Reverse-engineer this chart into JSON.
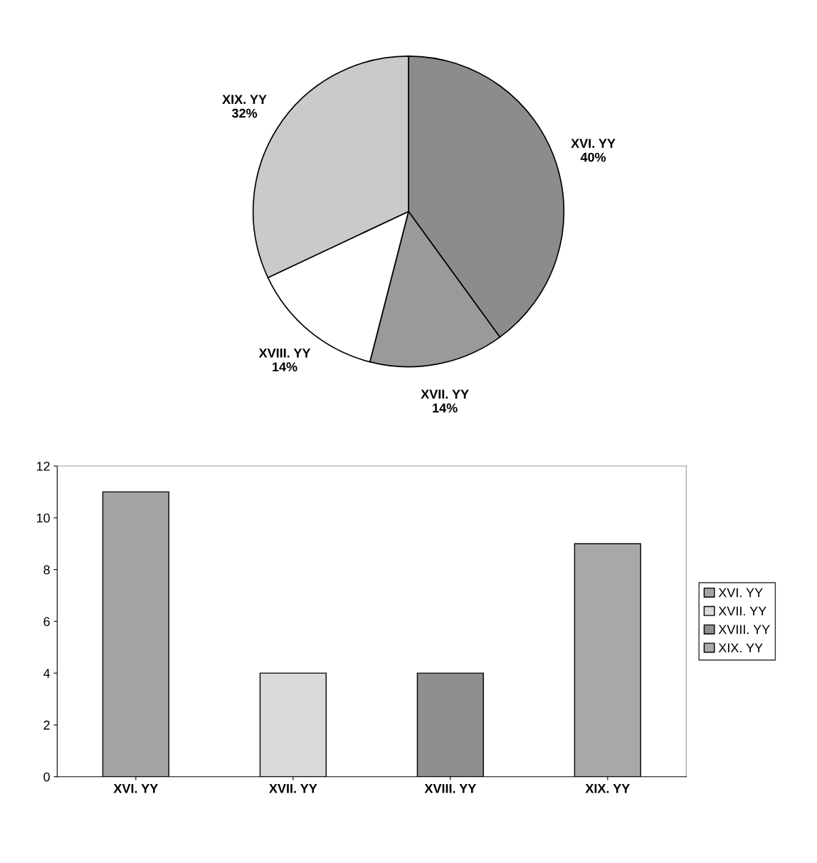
{
  "chart_data": [
    {
      "type": "pie",
      "categories": [
        "XVI. YY",
        "XVII. YY",
        "XVIII. YY",
        "XIX. YY"
      ],
      "values": [
        40,
        14,
        14,
        32
      ],
      "value_labels": [
        "40%",
        "14%",
        "14%",
        "32%"
      ],
      "colors": [
        "#8c8c8c",
        "#9a9a9a",
        "#ffffff",
        "#cacaca"
      ],
      "legend": false
    },
    {
      "type": "bar",
      "categories": [
        "XVI. YY",
        "XVII. YY",
        "XVIII. YY",
        "XIX. YY"
      ],
      "series": [
        {
          "name": "XVI. YY",
          "color": "#a4a4a4",
          "values": [
            11,
            null,
            null,
            null
          ]
        },
        {
          "name": "XVII. YY",
          "color": "#dadada",
          "values": [
            null,
            4,
            null,
            null
          ]
        },
        {
          "name": "XVIII. YY",
          "color": "#8e8e8e",
          "values": [
            null,
            null,
            4,
            null
          ]
        },
        {
          "name": "XIX. YY",
          "color": "#a8a8a8",
          "values": [
            null,
            null,
            null,
            9
          ]
        }
      ],
      "ylim": [
        0,
        12
      ],
      "yticks": [
        0,
        2,
        4,
        6,
        8,
        10,
        12
      ],
      "grid": false,
      "legend": "right"
    }
  ]
}
